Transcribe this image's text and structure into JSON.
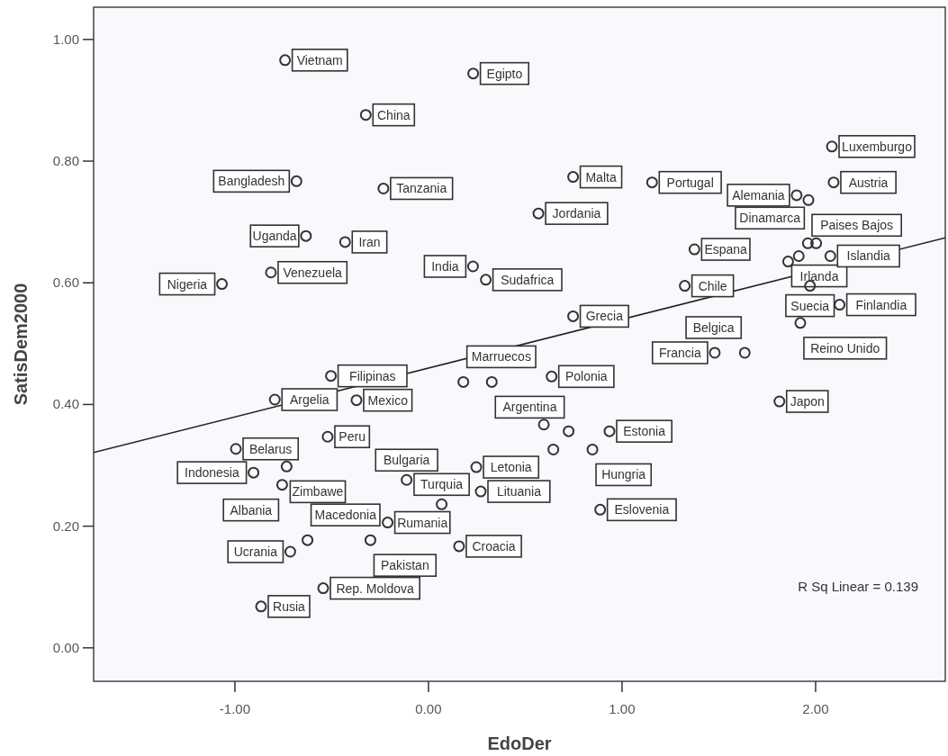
{
  "chart_data": {
    "type": "scatter",
    "xlabel": "EdoDer",
    "ylabel": "SatisDem2000",
    "xlim": [
      -1.73,
      2.67
    ],
    "ylim": [
      -0.055,
      1.053
    ],
    "xticks": [
      {
        "value": -1,
        "label": "-1.00"
      },
      {
        "value": 0,
        "label": "0.00"
      },
      {
        "value": 1,
        "label": "1.00"
      },
      {
        "value": 2,
        "label": "2.00"
      }
    ],
    "yticks": [
      {
        "value": 0,
        "label": "0.00"
      },
      {
        "value": 0.2,
        "label": "0.20"
      },
      {
        "value": 0.4,
        "label": "0.40"
      },
      {
        "value": 0.6,
        "label": "0.60"
      },
      {
        "value": 0.8,
        "label": "0.80"
      },
      {
        "value": 1,
        "label": "1.00"
      }
    ],
    "grid": false,
    "series": [
      {
        "marker": "circle",
        "color": "#333333",
        "x": [
          -0.741,
          -0.324,
          -0.682,
          -0.233,
          -0.633,
          -0.431,
          -0.814,
          -1.067,
          -0.504,
          0.231,
          0.747,
          1.155,
          0.568,
          1.374,
          0.23,
          0.296,
          1.324,
          0.747,
          1.479,
          0.636,
          2.084,
          2.093,
          1.902,
          1.963,
          1.96,
          2.003,
          1.913,
          1.858,
          2.076,
          1.971,
          2.124,
          1.921,
          1.634,
          1.813,
          -0.794,
          -0.372,
          -0.521,
          -0.995,
          -0.733,
          -0.904,
          -0.756,
          -0.113,
          -0.211,
          -0.625,
          -0.3,
          -0.714,
          -0.544,
          -0.865,
          0.18,
          0.327,
          0.596,
          0.724,
          0.935,
          0.645,
          0.847,
          0.247,
          0.27,
          0.068,
          0.887,
          0.158
        ],
        "values": [
          0.966,
          0.876,
          0.767,
          0.755,
          0.677,
          0.667,
          0.617,
          0.598,
          0.447,
          0.944,
          0.774,
          0.765,
          0.714,
          0.655,
          0.627,
          0.605,
          0.595,
          0.545,
          0.485,
          0.446,
          0.824,
          0.765,
          0.744,
          0.736,
          0.665,
          0.665,
          0.644,
          0.635,
          0.644,
          0.595,
          0.564,
          0.534,
          0.485,
          0.405,
          0.408,
          0.407,
          0.347,
          0.327,
          0.298,
          0.288,
          0.268,
          0.276,
          0.206,
          0.177,
          0.177,
          0.158,
          0.098,
          0.068,
          0.437,
          0.437,
          0.367,
          0.356,
          0.356,
          0.326,
          0.326,
          0.297,
          0.257,
          0.236,
          0.227,
          0.167
        ]
      },
      {
        "type": "line",
        "color": "#222222",
        "x": [
          -1.73,
          2.67
        ],
        "values": [
          0.321,
          0.674
        ]
      }
    ],
    "annotations": [
      {
        "text": "Vietnam",
        "x": -0.741,
        "y": 0.966
      },
      {
        "text": "China",
        "x": -0.324,
        "y": 0.876
      },
      {
        "text": "Bangladesh",
        "x": -0.682,
        "y": 0.767
      },
      {
        "text": "Tanzania",
        "x": -0.233,
        "y": 0.755
      },
      {
        "text": "Uganda",
        "x": -0.633,
        "y": 0.677
      },
      {
        "text": "Iran",
        "x": -0.431,
        "y": 0.667
      },
      {
        "text": "Venezuela",
        "x": -0.814,
        "y": 0.617
      },
      {
        "text": "Nigeria",
        "x": -1.067,
        "y": 0.598
      },
      {
        "text": "Filipinas",
        "x": -0.504,
        "y": 0.447
      },
      {
        "text": "Egipto",
        "x": 0.231,
        "y": 0.944
      },
      {
        "text": "Malta",
        "x": 0.747,
        "y": 0.774
      },
      {
        "text": "Portugal",
        "x": 1.155,
        "y": 0.765
      },
      {
        "text": "Jordania",
        "x": 0.568,
        "y": 0.714
      },
      {
        "text": "Espana",
        "x": 1.374,
        "y": 0.655
      },
      {
        "text": "India",
        "x": 0.23,
        "y": 0.627
      },
      {
        "text": "Sudafrica",
        "x": 0.296,
        "y": 0.605
      },
      {
        "text": "Chile",
        "x": 1.324,
        "y": 0.595
      },
      {
        "text": "Grecia",
        "x": 0.747,
        "y": 0.545
      },
      {
        "text": "Francia",
        "x": 1.479,
        "y": 0.485
      },
      {
        "text": "Polonia",
        "x": 0.636,
        "y": 0.446
      },
      {
        "text": "Luxemburgo",
        "x": 2.084,
        "y": 0.824
      },
      {
        "text": "Austria",
        "x": 2.093,
        "y": 0.765
      },
      {
        "text": "Alemania",
        "x": 1.902,
        "y": 0.744
      },
      {
        "text": "Paises Bajos",
        "x": 1.963,
        "y": 0.736
      },
      {
        "text": "Dinamarca",
        "x": 1.96,
        "y": 0.665
      },
      {
        "text": "Irlanda",
        "x": 1.858,
        "y": 0.635
      },
      {
        "text": "Islandia",
        "x": 2.076,
        "y": 0.644
      },
      {
        "text": "Suecia",
        "x": 1.971,
        "y": 0.595
      },
      {
        "text": "Finlandia",
        "x": 2.124,
        "y": 0.564
      },
      {
        "text": "Reino Unido",
        "x": 1.921,
        "y": 0.534
      },
      {
        "text": "Belgica",
        "x": 1.634,
        "y": 0.485
      },
      {
        "text": "Japon",
        "x": 1.813,
        "y": 0.405
      },
      {
        "text": "Argelia",
        "x": -0.794,
        "y": 0.408
      },
      {
        "text": "Mexico",
        "x": -0.372,
        "y": 0.407
      },
      {
        "text": "Peru",
        "x": -0.521,
        "y": 0.347
      },
      {
        "text": "Belarus",
        "x": -0.995,
        "y": 0.327
      },
      {
        "text": "Zimbawe",
        "x": -0.733,
        "y": 0.298
      },
      {
        "text": "Indonesia",
        "x": -0.904,
        "y": 0.288
      },
      {
        "text": "Albania",
        "x": -0.756,
        "y": 0.268
      },
      {
        "text": "Bulgaria",
        "x": -0.113,
        "y": 0.276
      },
      {
        "text": "Rumania",
        "x": -0.211,
        "y": 0.206
      },
      {
        "text": "Macedonia",
        "x": -0.625,
        "y": 0.177
      },
      {
        "text": "Pakistan",
        "x": -0.3,
        "y": 0.177
      },
      {
        "text": "Ucrania",
        "x": -0.714,
        "y": 0.158
      },
      {
        "text": "Rep. Moldova",
        "x": -0.544,
        "y": 0.098
      },
      {
        "text": "Rusia",
        "x": -0.865,
        "y": 0.068
      },
      {
        "text": "Marruecos",
        "x": 0.18,
        "y": 0.437
      },
      {
        "text": "Argentina",
        "x": 0.327,
        "y": 0.437
      },
      {
        "text": "Estonia",
        "x": 0.935,
        "y": 0.356
      },
      {
        "text": "Hungria",
        "x": 0.847,
        "y": 0.326
      },
      {
        "text": "Letonia",
        "x": 0.247,
        "y": 0.297
      },
      {
        "text": "Lituania",
        "x": 0.27,
        "y": 0.257
      },
      {
        "text": "Turquia",
        "x": 0.068,
        "y": 0.236
      },
      {
        "text": "Eslovenia",
        "x": 0.887,
        "y": 0.227
      },
      {
        "text": "Croacia",
        "x": 0.158,
        "y": 0.167
      },
      "R Sq Linear = 0.139"
    ]
  }
}
